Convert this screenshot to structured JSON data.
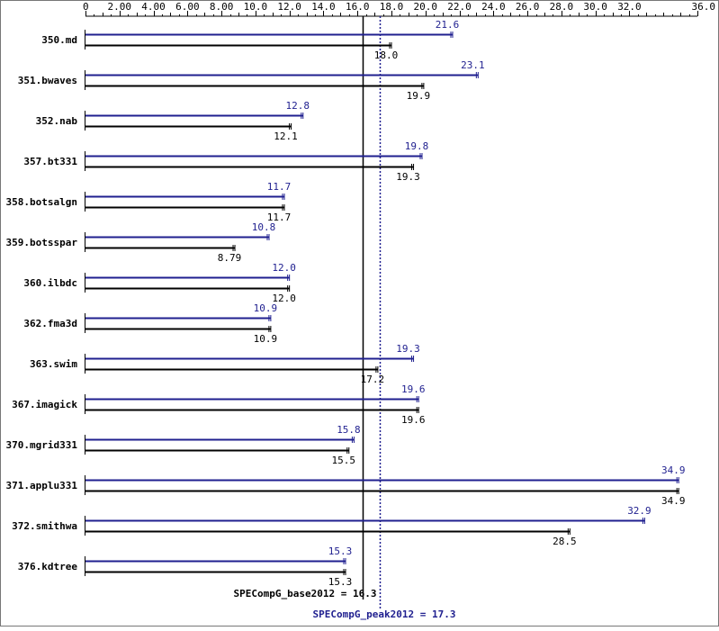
{
  "chart_data": {
    "type": "bar",
    "orientation": "horizontal",
    "xlim": [
      0,
      36
    ],
    "x_ticks": [
      "0",
      "2.00",
      "4.00",
      "6.00",
      "8.00",
      "10.0",
      "12.0",
      "14.0",
      "16.0",
      "18.0",
      "20.0",
      "22.0",
      "24.0",
      "26.0",
      "28.0",
      "30.0",
      "32.0",
      "36.0"
    ],
    "x_tick_values": [
      0,
      2,
      4,
      6,
      8,
      10,
      12,
      14,
      16,
      18,
      20,
      22,
      24,
      26,
      28,
      30,
      32,
      36
    ],
    "categories": [
      "350.md",
      "351.bwaves",
      "352.nab",
      "357.bt331",
      "358.botsalgn",
      "359.botsspar",
      "360.ilbdc",
      "362.fma3d",
      "363.swim",
      "367.imagick",
      "370.mgrid331",
      "371.applu331",
      "372.smithwa",
      "376.kdtree"
    ],
    "series": [
      {
        "name": "peak",
        "color": "#1f1f8f",
        "values": [
          21.6,
          23.1,
          12.8,
          19.8,
          11.7,
          10.8,
          12.0,
          10.9,
          19.3,
          19.6,
          15.8,
          34.9,
          32.9,
          15.3
        ],
        "labels": [
          "21.6",
          "23.1",
          "12.8",
          "19.8",
          "11.7",
          "10.8",
          "12.0",
          "10.9",
          "19.3",
          "19.6",
          "15.8",
          "34.9",
          "32.9",
          "15.3"
        ]
      },
      {
        "name": "base",
        "color": "#000000",
        "values": [
          18.0,
          19.9,
          12.1,
          19.3,
          11.7,
          8.79,
          12.0,
          10.9,
          17.2,
          19.6,
          15.5,
          34.9,
          28.5,
          15.3
        ],
        "labels": [
          "18.0",
          "19.9",
          "12.1",
          "19.3",
          "11.7",
          "8.79",
          "12.0",
          "10.9",
          "17.2",
          "19.6",
          "15.5",
          "34.9",
          "28.5",
          "15.3"
        ]
      }
    ],
    "reference_lines": [
      {
        "value": 16.3,
        "label": "SPECompG_base2012 = 16.3",
        "style": "solid",
        "color": "#000000"
      },
      {
        "value": 17.3,
        "label": "SPECompG_peak2012 = 17.3",
        "style": "dotted",
        "color": "#1f1f8f"
      }
    ],
    "grid": false,
    "legend": "none"
  }
}
